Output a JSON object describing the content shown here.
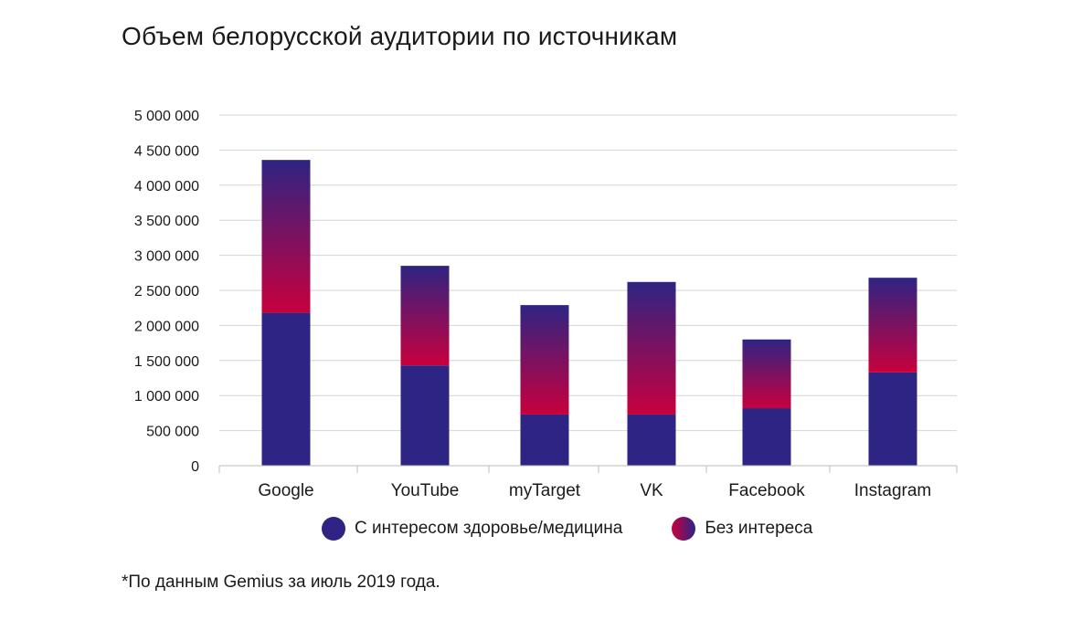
{
  "title": "Объем белорусской аудитории по источникам",
  "footnote": "*По данным Gemius за июль 2019 года.",
  "legend": [
    {
      "label": "С интересом здоровье/медицина",
      "color": "#2e2483"
    },
    {
      "label": "Без интереса",
      "color_from": "#c8003e",
      "color_to": "#2e2483"
    }
  ],
  "chart_data": {
    "type": "bar",
    "stacked": true,
    "title": "Объем белорусской аудитории по источникам",
    "xlabel": "",
    "ylabel": "",
    "categories": [
      "Google",
      "YouTube",
      "myTarget",
      "VK",
      "Facebook",
      "Instagram"
    ],
    "series": [
      {
        "name": "С интересом здоровье/медицина",
        "values": [
          2180000,
          1430000,
          730000,
          730000,
          820000,
          1330000
        ],
        "color": "#2e2483"
      },
      {
        "name": "Без интереса",
        "values": [
          2180000,
          1420000,
          1560000,
          1890000,
          980000,
          1350000
        ],
        "color_from": "#c8003e",
        "color_to": "#2e2483"
      }
    ],
    "yticks": [
      "0",
      "500 000",
      "1 000 000",
      "1 500 000",
      "2 000 000",
      "2 500 000",
      "3 000 000",
      "3 500 000",
      "4 000 000",
      "4 500 000",
      "5 000 000"
    ],
    "ylim": [
      0,
      5000000
    ],
    "grid": true,
    "legend_position": "bottom"
  }
}
